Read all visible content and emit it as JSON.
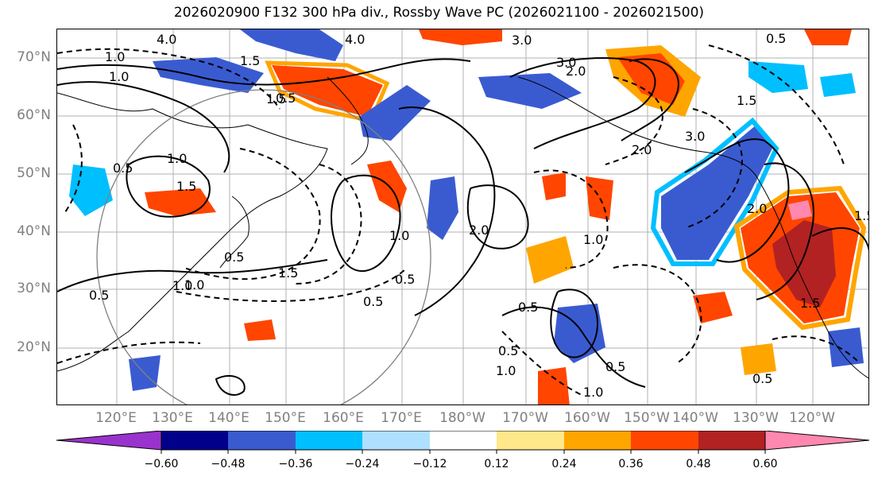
{
  "title": "2026020900 F132 300 hPa div., Rossby Wave PC (2026021100 - 2026021500)",
  "latitude_labels": [
    "70°N",
    "60°N",
    "50°N",
    "40°N",
    "30°N",
    "20°N"
  ],
  "longitude_labels": [
    "120°E",
    "130°E",
    "140°E",
    "150°E",
    "160°E",
    "170°E",
    "180°W",
    "170°W",
    "160°W",
    "150°W",
    "140°W",
    "130°W",
    "120°W"
  ],
  "colorbar": {
    "ticks": [
      "−0.60",
      "−0.48",
      "−0.36",
      "−0.24",
      "−0.12",
      "0.12",
      "0.24",
      "0.36",
      "0.48",
      "0.60"
    ],
    "colors": [
      "#9a32cd",
      "#00008b",
      "#3a5bd0",
      "#00bfff",
      "#b0e0ff",
      "#ffffff",
      "#ffe88a",
      "#ffa500",
      "#ff4500",
      "#b22222",
      "#ff88b0"
    ]
  },
  "contour_labels": [
    "4.0",
    "4.0",
    "3.0",
    "3.0",
    "0.5",
    "1.0",
    "1.0",
    "1.5",
    "0.5",
    "1.0",
    "1.5",
    "0.5",
    "0.5",
    "1.5",
    "1.0",
    "1.0",
    "2.0",
    "0.5",
    "2.0",
    "2.0",
    "0.5",
    "1.0",
    "1.5",
    "1.5",
    "1.0",
    "0.5",
    "1.0",
    "0.5",
    "0.5",
    "1.0",
    "2.0",
    "3.0",
    "0.5",
    "1.5",
    "0.5",
    "1.5"
  ]
}
